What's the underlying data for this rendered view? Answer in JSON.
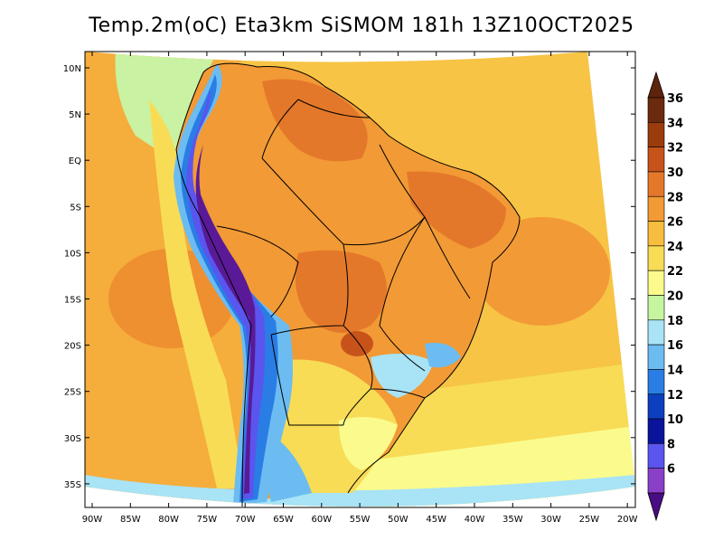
{
  "title": "Temp.2m(oC) Eta3km SiSMOM 181h 13Z10OCT2025",
  "lat_labels": [
    "10N",
    "5N",
    "EQ",
    "5S",
    "10S",
    "15S",
    "20S",
    "25S",
    "30S",
    "35S"
  ],
  "lon_labels": [
    "90W",
    "85W",
    "80W",
    "75W",
    "70W",
    "65W",
    "60W",
    "55W",
    "50W",
    "45W",
    "40W",
    "35W",
    "30W",
    "25W",
    "20W"
  ],
  "colorbar": {
    "labels": [
      "36",
      "34",
      "32",
      "30",
      "28",
      "26",
      "24",
      "22",
      "20",
      "18",
      "16",
      "14",
      "12",
      "10",
      "8",
      "6"
    ],
    "colors": [
      "#6b2a0d",
      "#9a3c0c",
      "#c8531a",
      "#e4782a",
      "#f29a35",
      "#f7bd3e",
      "#f8dc56",
      "#fafb8c",
      "#c6f5a0",
      "#a8e3f6",
      "#6cbcf2",
      "#2a7de4",
      "#0b3fbf",
      "#0a149a",
      "#5a55ee",
      "#8a3fc9",
      "#5a1a97"
    ],
    "top_color": "#5e230b",
    "bottom_color": "#4a0c85"
  }
}
